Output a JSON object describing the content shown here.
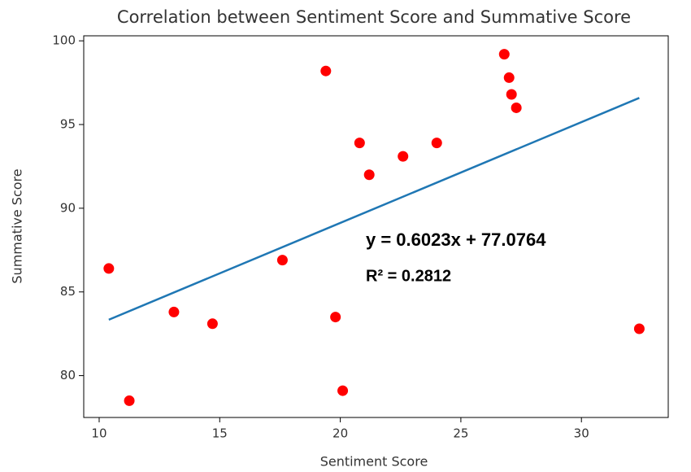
{
  "chart_data": {
    "type": "scatter",
    "title": "Correlation between Sentiment Score and Summative Score",
    "x_label": "Sentiment Score",
    "y_label": "Summative Score",
    "xlim": [
      9.36,
      33.6
    ],
    "ylim": [
      77.5,
      100.3
    ],
    "xticks": [
      10,
      15,
      20,
      25,
      30
    ],
    "yticks": [
      80,
      85,
      90,
      95,
      100
    ],
    "grid": false,
    "series": [
      {
        "type": "scatter",
        "color": "#ff0000",
        "x": [
          10.4,
          11.25,
          13.1,
          14.7,
          17.6,
          19.4,
          19.8,
          20.1,
          20.8,
          21.2,
          22.6,
          24.0,
          26.8,
          27.0,
          27.1,
          27.3,
          32.4
        ],
        "values": [
          86.4,
          78.5,
          83.8,
          83.1,
          86.9,
          98.2,
          83.5,
          79.1,
          93.9,
          92.0,
          93.1,
          93.9,
          99.2,
          97.8,
          96.8,
          96.0,
          82.8
        ]
      },
      {
        "type": "line",
        "color": "#1f77b4",
        "x": [
          10.4,
          32.4
        ],
        "values": [
          83.34,
          96.59
        ]
      }
    ],
    "annotations": [
      "y = 0.6023x + 77.0764",
      "R² = 0.2812"
    ]
  }
}
